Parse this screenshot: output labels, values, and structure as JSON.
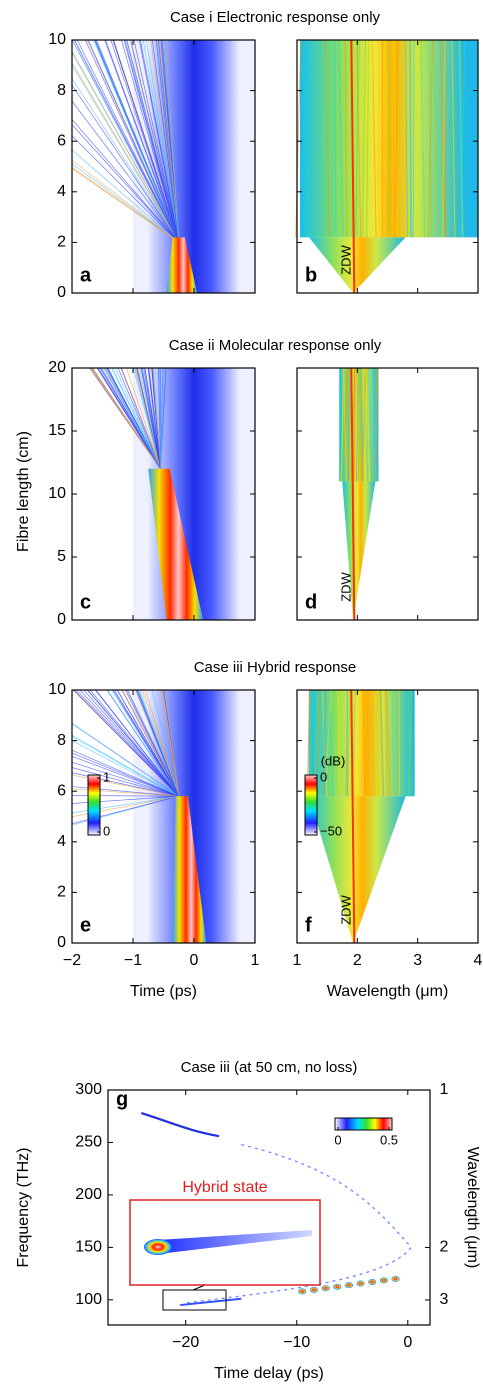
{
  "chart_data": [
    {
      "type": "heatmap",
      "title": "Case i Electronic response only",
      "label": "a",
      "xlim": [
        -2,
        1
      ],
      "xticks": [
        {
          "value": -2,
          "label": "−2"
        },
        {
          "value": -1,
          "label": "−1"
        },
        0,
        1
      ],
      "ylim": [
        0,
        10
      ],
      "yticks": [
        0,
        2,
        4,
        6,
        8,
        10
      ]
    },
    {
      "type": "heatmap",
      "label": "b",
      "annotation": "ZDW",
      "xlim": [
        1,
        4
      ],
      "xticks": [
        1,
        2,
        3,
        4
      ],
      "ylim": [
        0,
        10
      ],
      "yticks": [
        0,
        2,
        4,
        6,
        8,
        10
      ]
    },
    {
      "type": "heatmap",
      "title": "Case ii Molecular response only",
      "label": "c",
      "ylabel": "Fibre length (cm)",
      "xlim": [
        -2,
        1
      ],
      "xticks": [
        {
          "value": -2,
          "label": "−2"
        },
        {
          "value": -1,
          "label": "−1"
        },
        0,
        1
      ],
      "ylim": [
        0,
        20
      ],
      "yticks": [
        0,
        5,
        10,
        15,
        20
      ]
    },
    {
      "type": "heatmap",
      "label": "d",
      "annotation": "ZDW",
      "xlim": [
        1,
        4
      ],
      "xticks": [
        1,
        2,
        3,
        4
      ],
      "ylim": [
        0,
        20
      ],
      "yticks": [
        0,
        5,
        10,
        15,
        20
      ]
    },
    {
      "type": "heatmap",
      "title": "Case iii Hybrid response",
      "label": "e",
      "xlabel": "Time (ps)",
      "xlim": [
        -2,
        1
      ],
      "xticks": [
        {
          "value": -2,
          "label": "−2"
        },
        {
          "value": -1,
          "label": "−1"
        },
        0,
        1
      ],
      "ylim": [
        0,
        10
      ],
      "yticks": [
        0,
        2,
        4,
        6,
        8,
        10
      ],
      "colorbar": {
        "lim": [
          0,
          1
        ],
        "ticks": [
          0,
          1
        ]
      }
    },
    {
      "type": "heatmap",
      "label": "f",
      "annotation": "ZDW",
      "xlabel": "Wavelength (μm)",
      "xlim": [
        1,
        4
      ],
      "xticks": [
        1,
        2,
        3,
        4
      ],
      "ylim": [
        0,
        10
      ],
      "yticks": [
        0,
        2,
        4,
        6,
        8,
        10
      ],
      "colorbar": {
        "label": "(dB)",
        "lim": [
          -50,
          0
        ],
        "ticks": [
          {
            "value": -50,
            "label": "−50"
          },
          0
        ]
      }
    },
    {
      "type": "heatmap",
      "title": "Case iii (at 50 cm, no loss)",
      "label": "g",
      "annotation": "Hybrid state",
      "xlabel": "Time delay (ps)",
      "ylabel": "Frequency (THz)",
      "y2label": "Wavelength (μm)",
      "xlim": [
        -27,
        2
      ],
      "xticks": [
        {
          "value": -20,
          "label": "−20"
        },
        {
          "value": -10,
          "label": "−10"
        },
        0
      ],
      "ylim": [
        76,
        300
      ],
      "yticks": [
        100,
        150,
        200,
        250,
        300
      ],
      "y2lim": [
        3.94,
        1
      ],
      "y2ticks": [
        1,
        2,
        3
      ],
      "y2scale": "reciprocal",
      "colorbar": {
        "lim": [
          0,
          0.5
        ],
        "ticks": [
          0,
          0.5
        ]
      }
    }
  ]
}
